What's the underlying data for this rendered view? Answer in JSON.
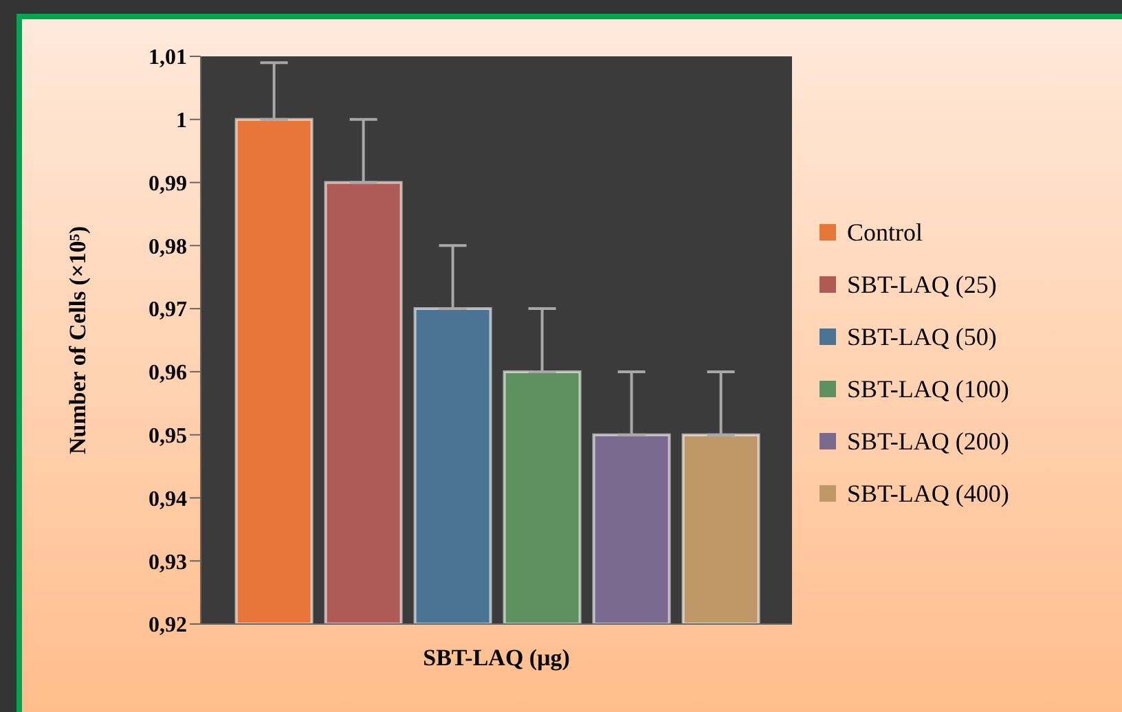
{
  "chart_data": {
    "type": "bar",
    "xlabel": "SBT-LAQ (μg)",
    "ylabel": "Number of Cells (×10⁵)",
    "categories": [
      null
    ],
    "series": [
      {
        "name": "Control",
        "color": "#e8763a",
        "values": [
          1
        ],
        "errors": [
          [
            1,
            1.009
          ]
        ]
      },
      {
        "name": "SBT-LAQ (25)",
        "color": "#b05a56",
        "values": [
          0.99
        ],
        "errors": [
          [
            0.99,
            1
          ]
        ]
      },
      {
        "name": "SBT-LAQ (50)",
        "color": "#4a7394",
        "values": [
          0.97
        ],
        "errors": [
          [
            0.97,
            0.98
          ]
        ]
      },
      {
        "name": "SBT-LAQ (100)",
        "color": "#5e9060",
        "values": [
          0.96
        ],
        "errors": [
          [
            0.96,
            0.97
          ]
        ]
      },
      {
        "name": "SBT-LAQ (200)",
        "color": "#7a6a90",
        "values": [
          0.95
        ],
        "errors": [
          [
            0.95,
            0.96
          ]
        ]
      },
      {
        "name": "SBT-LAQ (400)",
        "color": "#c09868",
        "values": [
          0.95
        ],
        "errors": [
          [
            0.95,
            0.96
          ]
        ]
      }
    ],
    "ylim": [
      0.92,
      1.01
    ],
    "yticks": [
      {
        "value": 0.92,
        "label": "0,92"
      },
      {
        "value": 0.93,
        "label": "0,93"
      },
      {
        "value": 0.94,
        "label": "0,94"
      },
      {
        "value": 0.95,
        "label": "0,95"
      },
      {
        "value": 0.96,
        "label": "0,96"
      },
      {
        "value": 0.97,
        "label": "0,97"
      },
      {
        "value": 0.98,
        "label": "0,98"
      },
      {
        "value": 0.99,
        "label": "0,99"
      },
      {
        "value": 1,
        "label": "1"
      },
      {
        "value": 1.01,
        "label": "1,01"
      }
    ],
    "legend": "right"
  }
}
